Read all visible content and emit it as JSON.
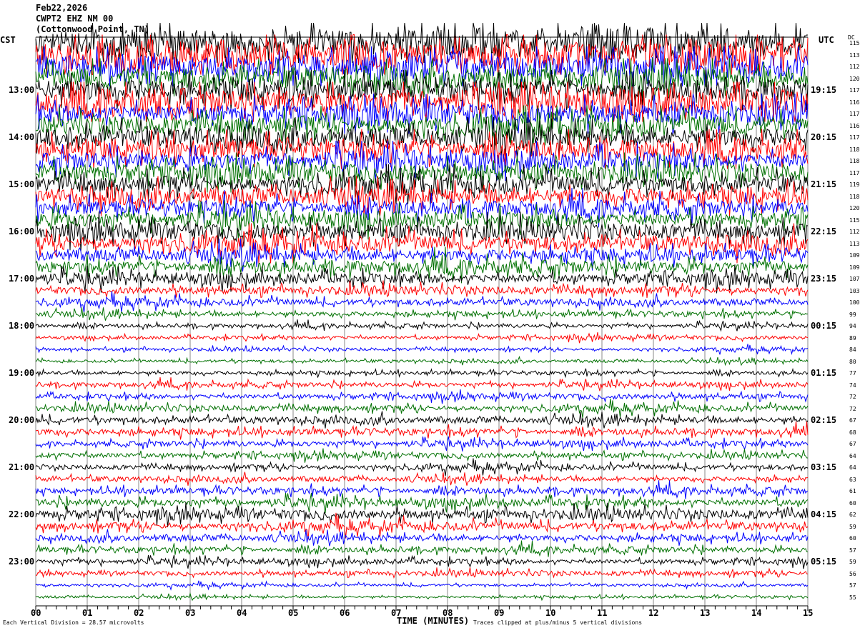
{
  "header": {
    "date": "Feb22,2026",
    "station": "CWPT2 EHZ NM 00",
    "location": "(Cottonwood Point, TN)"
  },
  "left_timezone": "CST",
  "right_timezone": "UTC",
  "dc_label": "DC",
  "footer": {
    "scale_note": "Each Vertical Division =   28.57 microvolts",
    "xlabel": "TIME (MINUTES)",
    "clip_note": "Traces clipped at plus/minus 5 vertical divisions"
  },
  "chart_data": {
    "type": "line",
    "title": "",
    "xlabel": "TIME (MINUTES)",
    "xlim": [
      0,
      15
    ],
    "x_ticks": [
      "00",
      "01",
      "02",
      "03",
      "04",
      "05",
      "06",
      "07",
      "08",
      "09",
      "10",
      "11",
      "12",
      "13",
      "14",
      "15"
    ],
    "trace_colors": [
      "#000000",
      "#ff0000",
      "#0000ff",
      "#007000"
    ],
    "left_hour_labels": [
      "13:00",
      "14:00",
      "15:00",
      "16:00",
      "17:00",
      "18:00",
      "19:00",
      "20:00",
      "21:00",
      "22:00",
      "23:00"
    ],
    "right_hour_labels": [
      "19:15",
      "20:15",
      "21:15",
      "22:15",
      "23:15",
      "00:15",
      "01:15",
      "02:15",
      "03:15",
      "04:15",
      "05:15"
    ],
    "dc_offsets": [
      115,
      113,
      112,
      120,
      117,
      116,
      117,
      116,
      117,
      118,
      118,
      117,
      119,
      118,
      120,
      115,
      112,
      113,
      109,
      109,
      107,
      103,
      100,
      99,
      94,
      89,
      84,
      80,
      77,
      74,
      72,
      72,
      67,
      68,
      67,
      64,
      64,
      63,
      61,
      60,
      62,
      59,
      60,
      57,
      59,
      56,
      57,
      55
    ],
    "relative_amplitude": [
      1.0,
      1.0,
      0.9,
      0.9,
      0.9,
      1.0,
      0.8,
      0.8,
      0.8,
      0.8,
      0.7,
      0.7,
      0.7,
      0.7,
      0.6,
      0.6,
      0.6,
      0.6,
      0.5,
      0.5,
      0.4,
      0.3,
      0.25,
      0.2,
      0.15,
      0.15,
      0.12,
      0.12,
      0.15,
      0.18,
      0.2,
      0.22,
      0.25,
      0.25,
      0.22,
      0.2,
      0.2,
      0.2,
      0.25,
      0.3,
      0.35,
      0.3,
      0.25,
      0.22,
      0.2,
      0.18,
      0.1,
      0.1
    ],
    "clip_divisions": 5,
    "microvolts_per_division": 28.57
  }
}
